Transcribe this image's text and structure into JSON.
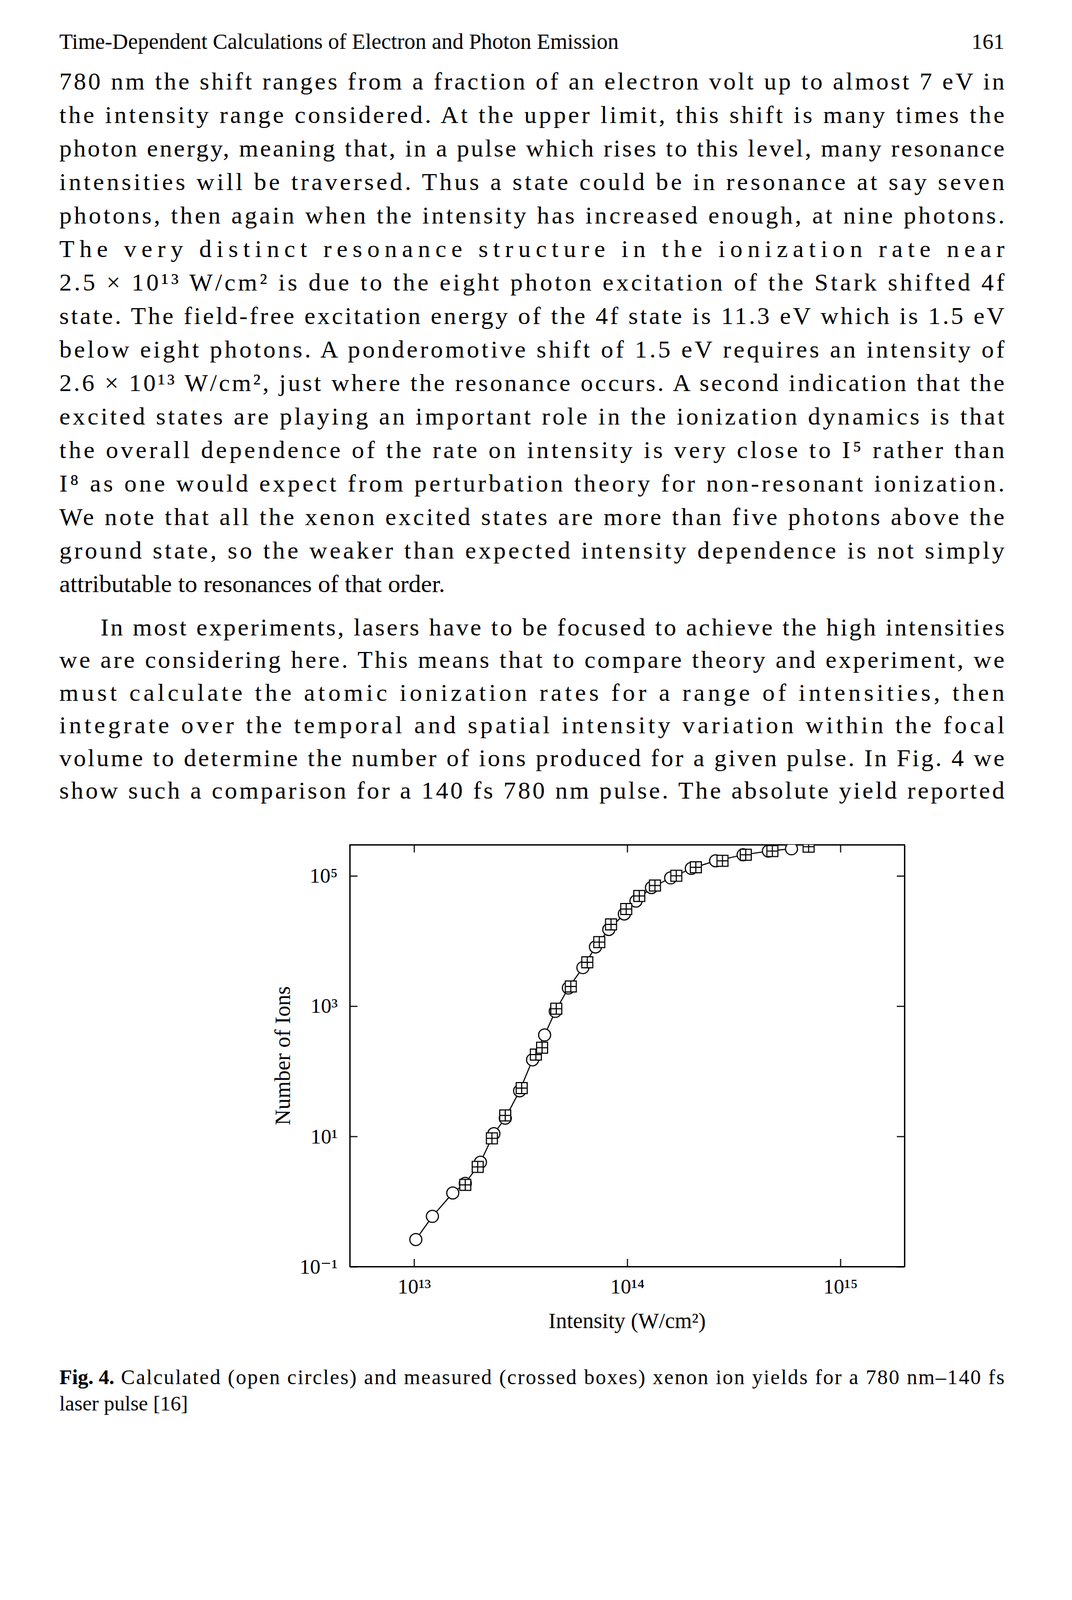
{
  "page": {
    "header": {
      "title": "Time-Dependent Calculations of Electron and Photon Emission",
      "page_number": "161"
    },
    "paragraphs": [
      [
        "780 nm the shift ranges from a fraction of an electron volt up to almost 7 eV in",
        "the intensity range considered. At the upper limit, this shift is many times the",
        "photon energy, meaning that, in a pulse which rises to this level, many resonance",
        "intensities will be traversed. Thus a state could be in resonance at say seven",
        "photons, then again when the intensity has increased enough, at nine photons.",
        "The very distinct resonance structure in the ionization rate near",
        "2.5 × 10¹³ W/cm² is due to the eight photon excitation of the Stark shifted 4f",
        "state. The field-free excitation energy of the 4f state is 11.3 eV which is 1.5 eV",
        "below eight photons. A ponderomotive shift of 1.5 eV requires an intensity of",
        "2.6 × 10¹³ W/cm², just where the resonance occurs. A second indication that the",
        "excited states are playing an important role in the ionization dynamics is that",
        "the overall dependence of the rate on intensity is very close to I⁵ rather than",
        "I⁸ as one would expect from perturbation theory for non-resonant ionization.",
        "We note that all the xenon excited states are more than five photons above the",
        "ground state, so the weaker than expected intensity dependence is not simply",
        "attributable to resonances of that order."
      ],
      [
        "In most experiments, lasers have to be focused to achieve the high intensities",
        "we are considering here. This means that to compare theory and experiment, we",
        "must calculate the atomic ionization rates for a range of intensities, then",
        "integrate over the temporal and spatial intensity variation within the focal",
        "volume to determine the number of ions produced for a given pulse. In Fig. 4 we",
        "show such a comparison for a 140 fs 780 nm pulse. The absolute yield reported"
      ]
    ],
    "caption": {
      "label": "Fig. 4.",
      "lines": [
        "Calculated (open circles) and measured (crossed boxes) xenon ion yields for a 780 nm–140 fs",
        "laser pulse [16]"
      ]
    }
  },
  "chart_data": {
    "type": "scatter",
    "x_label": "Intensity (W/cm²)",
    "y_label": "Number of Ions",
    "log": true,
    "grid": false,
    "xlim": [
      5000000000000.0,
      2000000000000000.0
    ],
    "xticks": [
      {
        "value": 10000000000000.0,
        "label": "10¹³"
      },
      {
        "value": 100000000000000.0,
        "label": "10¹⁴"
      },
      {
        "value": 1000000000000000.0,
        "label": "10¹⁵"
      }
    ],
    "ylim": [
      0.1,
      300000
    ],
    "yticks": [
      {
        "value": 0.1,
        "label": "10⁻¹"
      },
      {
        "value": 10,
        "label": "10¹"
      },
      {
        "value": 1000,
        "label": "10³"
      },
      {
        "value": 100000,
        "label": "10⁵"
      }
    ],
    "series": [
      {
        "color": "#000000",
        "marker": "circle",
        "line_style": "solid",
        "x": [
          10200000000000.0,
          12200000000000.0,
          15200000000000.0,
          17400000000000.0,
          20500000000000.0,
          23700000000000.0,
          26800000000000.0,
          31300000000000.0,
          36000000000000.0,
          41000000000000.0,
          46000000000000.0,
          53000000000000.0,
          62000000000000.0,
          71000000000000.0,
          82000000000000.0,
          97000000000000.0,
          110000000000000.0,
          130000000000000.0,
          160000000000000.0,
          200000000000000.0,
          260000000000000.0,
          350000000000000.0,
          460000000000000.0,
          590000000000000.0
        ],
        "values": [
          0.26,
          0.59,
          1.35,
          1.9,
          4,
          11,
          19,
          50,
          150,
          360,
          830,
          1900,
          3900,
          8100,
          15000,
          26000,
          41000,
          66000,
          93000,
          130000,
          170000,
          210000,
          240000,
          260000
        ]
      },
      {
        "color": "#000000",
        "marker": "crossed-box",
        "line_style": "none",
        "x": [
          17400000000000.0,
          19900000000000.0,
          23200000000000.0,
          26800000000000.0,
          32000000000000.0,
          37300000000000.0,
          39900000000000.0,
          46500000000000.0,
          54400000000000.0,
          65000000000000.0,
          74000000000000.0,
          84000000000000.0,
          99000000000000.0,
          114000000000000.0,
          135000000000000.0,
          170000000000000.0,
          210000000000000.0,
          280000000000000.0,
          360000000000000.0,
          480000000000000.0,
          710000000000000.0
        ],
        "values": [
          1.8,
          3.4,
          9.3,
          21,
          55,
          180,
          230,
          910,
          2000,
          4700,
          9600,
          18000,
          31000,
          49000,
          71000,
          100000,
          135000,
          170000,
          210000,
          240000,
          280000
        ]
      }
    ]
  }
}
